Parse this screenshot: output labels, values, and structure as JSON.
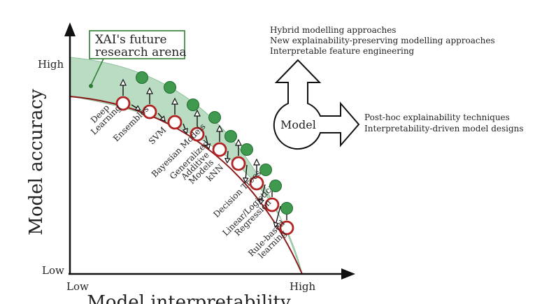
{
  "callout": {
    "line1": "XAI's future",
    "line2": "research arena",
    "border_color": "#2e7d32"
  },
  "axes": {
    "y_title": "Model accuracy",
    "x_title": "Model interpretability",
    "y_high": "High",
    "y_low": "Low",
    "x_low": "Low",
    "x_high": "High"
  },
  "models": [
    {
      "lines": [
        "Deep",
        "Learning"
      ]
    },
    {
      "lines": [
        "Ensembles"
      ]
    },
    {
      "lines": [
        "SVM"
      ]
    },
    {
      "lines": [
        "Bayesian Models"
      ]
    },
    {
      "lines": [
        "Generalized",
        "Additive",
        "Models"
      ]
    },
    {
      "lines": [
        "kNN"
      ]
    },
    {
      "lines": [
        "Decision Trees"
      ]
    },
    {
      "lines": [
        "Linear/Logistic",
        "Regression"
      ]
    },
    {
      "lines": [
        "Rule-based",
        "learning"
      ]
    }
  ],
  "right_panel": {
    "top_lines": [
      "Hybrid modelling approaches",
      "New explainability-preserving modelling approaches",
      "Interpretable feature engineering"
    ],
    "model_label": "Model",
    "side_lines": [
      "Post-hoc explainability techniques",
      "Interpretability-driven model designs"
    ]
  },
  "colors": {
    "frontier": "#8b1a1a",
    "open_circle": "#b22222",
    "band_fill": "#b9dcc3",
    "band_stroke": "#8fc09d",
    "green_dot": "#3f9a4f",
    "green_dot_stroke": "#1f6b2c"
  }
}
